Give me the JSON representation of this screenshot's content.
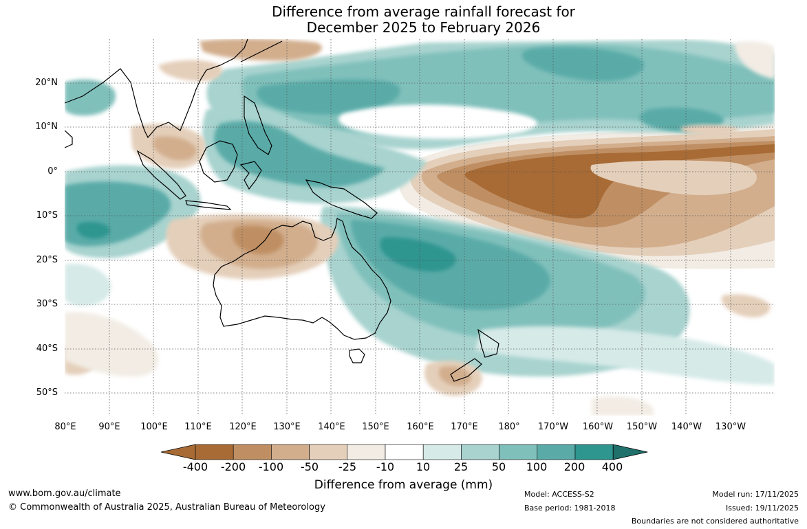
{
  "title": {
    "line1": "Difference from average rainfall forecast for",
    "line2": "December 2025 to February 2026"
  },
  "map": {
    "region": "Indo-Pacific, 80°E to 120°W, 55°S to 30°N",
    "lat_labels": [
      "20°N",
      "10°N",
      "0°",
      "10°S",
      "20°S",
      "30°S",
      "40°S",
      "50°S"
    ],
    "lon_labels": [
      "80°E",
      "90°E",
      "100°E",
      "110°E",
      "120°E",
      "130°E",
      "140°E",
      "150°E",
      "160°E",
      "170°E",
      "180°",
      "170°W",
      "160°W",
      "150°W",
      "140°W",
      "130°W"
    ],
    "legend": {
      "title": "Difference from average (mm)",
      "tick_labels": [
        "-400",
        "-200",
        "-100",
        "-50",
        "-25",
        "-10",
        "10",
        "25",
        "50",
        "100",
        "200",
        "400"
      ],
      "colors": [
        "#a86b35",
        "#bf8f63",
        "#d2ae8d",
        "#e4cfba",
        "#f2ece4",
        "#ffffff",
        "#d6eae8",
        "#a8d3cf",
        "#80c0bb",
        "#5aaba8",
        "#2f958f",
        "#20706b"
      ]
    }
  },
  "footer": {
    "website": "www.bom.gov.au/climate",
    "copyright": "© Commonwealth of Australia 2025, Australian Bureau of Meteorology",
    "model": "Model: ACCESS-S2",
    "base_period": "Base period: 1981-2018",
    "model_run": "Model run: 17/11/2025",
    "issued": "Issued: 19/11/2025",
    "disclaimer": "Boundaries are not considered authoritative"
  }
}
